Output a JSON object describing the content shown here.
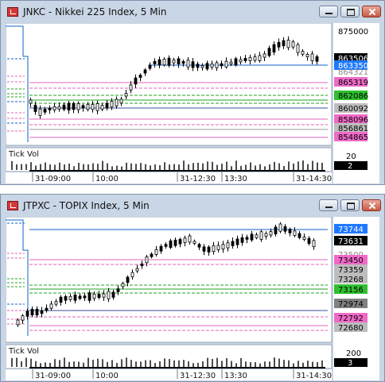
{
  "windows": [
    {
      "title": "JNKC - Nikkei 225 Index, 5 Min",
      "price_labels": [
        {
          "text": "875000",
          "bg": "#ffffff",
          "fg": "#000000"
        },
        {
          "text": "863506",
          "bg": "#000000",
          "fg": "#ffffff"
        },
        {
          "text": "863350",
          "bg": "#1e78ff",
          "fg": "#ffffff"
        },
        {
          "text": "864321",
          "bg": "#ffffff",
          "fg": "#888888"
        },
        {
          "text": "865319",
          "bg": "#f06ac8",
          "fg": "#000000"
        },
        {
          "text": "862086",
          "bg": "#30c030",
          "fg": "#000000"
        },
        {
          "text": "860092",
          "bg": "#bdbdbd",
          "fg": "#000000"
        },
        {
          "text": "858096",
          "bg": "#f06ac8",
          "fg": "#000000"
        },
        {
          "text": "856861",
          "bg": "#bdbdbd",
          "fg": "#000000"
        },
        {
          "text": "854865",
          "bg": "#f06ac8",
          "fg": "#000000"
        }
      ],
      "volume_label": "Tick Vol",
      "volume_scale": {
        "top": "20",
        "current": "2"
      },
      "time_labels": [
        "31-09:00",
        "10:00",
        "31-12:30",
        "13:30",
        "31-14:30"
      ]
    },
    {
      "title": "JTPXC - TOPIX Index, 5 Min",
      "price_labels": [
        {
          "text": "73744",
          "bg": "#1e78ff",
          "fg": "#ffffff"
        },
        {
          "text": "73631",
          "bg": "#000000",
          "fg": "#ffffff"
        },
        {
          "text": "73500",
          "bg": "#ffffff",
          "fg": "#888888"
        },
        {
          "text": "73450",
          "bg": "#f06ac8",
          "fg": "#000000"
        },
        {
          "text": "73359",
          "bg": "#bdbdbd",
          "fg": "#000000"
        },
        {
          "text": "73268",
          "bg": "#bdbdbd",
          "fg": "#000000"
        },
        {
          "text": "73156",
          "bg": "#30c030",
          "fg": "#000000"
        },
        {
          "text": "72974",
          "bg": "#808080",
          "fg": "#000000"
        },
        {
          "text": "72792",
          "bg": "#f06ac8",
          "fg": "#000000"
        },
        {
          "text": "72680",
          "bg": "#bdbdbd",
          "fg": "#000000"
        }
      ],
      "volume_label": "Tick Vol",
      "volume_scale": {
        "top": "200",
        "current": "3"
      },
      "time_labels": [
        "31-09:00",
        "10:00",
        "31-12:30",
        "13:30",
        "31-14:30"
      ]
    }
  ],
  "colors": {
    "pivot": "#1060c8",
    "resistance": "#e066b8",
    "support": "#20a020",
    "bull": "#ffffff",
    "bear": "#000000"
  }
}
